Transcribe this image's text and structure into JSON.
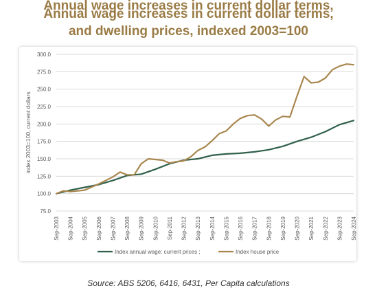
{
  "title_lines": [
    "Annual wage increases in current dollar terms,",
    "Annual wage increases in current dollar terms,",
    "and dwelling prices, indexed 2003=100"
  ],
  "source": "Source: ABS 5206, 6416, 6431, Per Capita calculations",
  "colors": {
    "title": "#9a7b45",
    "wage": "#2f5f4a",
    "house": "#a8864e",
    "grid": "#d9d9d9",
    "axis_text": "#595959"
  },
  "chart_data": {
    "type": "line",
    "title": "",
    "xlabel": "",
    "ylabel": "index 2003=100, current dollars",
    "ylim": [
      75,
      300
    ],
    "yticks": [
      "75.0",
      "100.0",
      "125.0",
      "150.0",
      "175.0",
      "200.0",
      "225.0",
      "250.0",
      "275.0",
      "300.0"
    ],
    "ytick_values": [
      75,
      100,
      125,
      150,
      175,
      200,
      225,
      250,
      275,
      300
    ],
    "x_tick_labels": [
      "Sep-2003",
      "Sep-2004",
      "Sep-2005",
      "Sep-2006",
      "Sep-2007",
      "Sep-2008",
      "Sep-2009",
      "Sep-2010",
      "Sep-2011",
      "Sep-2012",
      "Sep-2013",
      "Sep-2014",
      "Sep-2015",
      "Sep-2016",
      "Sep-2017",
      "Sep-2018",
      "Sep-2019",
      "Sep-2020",
      "Sep-2021",
      "Sep-2022",
      "Sep-2023",
      "Sep-2024"
    ],
    "x_range": [
      "Sep-2003",
      "Sep-2024"
    ],
    "grid": "horizontal",
    "legend_position": "bottom",
    "series": [
      {
        "name": "Index annual wage: current prices ;",
        "x": [
          "Sep-2003",
          "Sep-2004",
          "Sep-2005",
          "Sep-2006",
          "Sep-2007",
          "Sep-2008",
          "Sep-2009",
          "Sep-2010",
          "Sep-2011",
          "Sep-2012",
          "Sep-2013",
          "Sep-2014",
          "Sep-2015",
          "Sep-2016",
          "Sep-2017",
          "Sep-2018",
          "Sep-2019",
          "Sep-2020",
          "Sep-2021",
          "Sep-2022",
          "Sep-2023",
          "Sep-2024"
        ],
        "values": [
          100,
          105,
          109,
          113,
          119,
          126,
          128,
          135,
          143,
          148,
          150,
          155,
          157,
          158,
          160,
          163,
          168,
          175,
          181,
          189,
          199,
          205
        ]
      },
      {
        "name": "Index house price",
        "x": [
          "Sep-2003",
          "Mar-2004",
          "Sep-2004",
          "Sep-2005",
          "Sep-2006",
          "Sep-2007",
          "Mar-2008",
          "Sep-2008",
          "Mar-2009",
          "Sep-2009",
          "Mar-2010",
          "Sep-2010",
          "Mar-2011",
          "Sep-2011",
          "Mar-2012",
          "Sep-2012",
          "Mar-2013",
          "Sep-2013",
          "Mar-2014",
          "Sep-2014",
          "Mar-2015",
          "Sep-2015",
          "Mar-2016",
          "Sep-2016",
          "Mar-2017",
          "Sep-2017",
          "Mar-2018",
          "Sep-2018",
          "Mar-2019",
          "Sep-2019",
          "Mar-2020",
          "Sep-2020",
          "Mar-2021",
          "Sep-2021",
          "Mar-2022",
          "Sep-2022",
          "Mar-2023",
          "Sep-2023",
          "Mar-2024",
          "Sep-2024"
        ],
        "values": [
          100,
          104,
          103,
          105,
          114,
          124,
          131,
          127,
          127,
          143,
          150,
          149,
          148,
          144,
          146,
          147,
          153,
          162,
          167,
          176,
          186,
          190,
          200,
          208,
          212,
          213,
          207,
          197,
          206,
          211,
          210,
          240,
          268,
          259,
          260,
          266,
          278,
          283,
          286,
          285
        ]
      }
    ]
  }
}
